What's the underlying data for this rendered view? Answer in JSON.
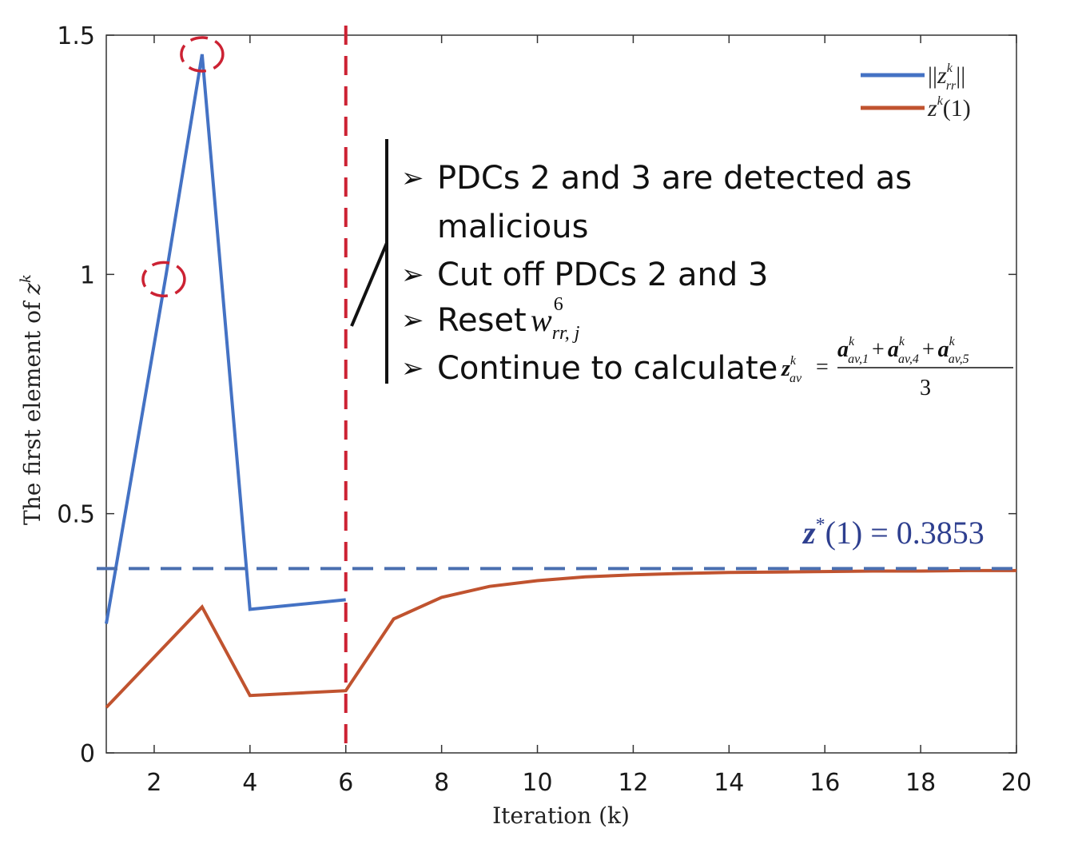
{
  "chart_data": {
    "type": "line",
    "xlabel": "Iteration (k)",
    "ylabel": "The first element of z^k",
    "ylabel_parts": {
      "text": "The first element of ",
      "var": "z",
      "sup": "k"
    },
    "xlim": [
      1,
      20
    ],
    "ylim": [
      0,
      1.5
    ],
    "x_ticks": [
      2,
      4,
      6,
      8,
      10,
      12,
      14,
      16,
      18,
      20
    ],
    "x_tick_labels": [
      "2",
      "4",
      "6",
      "8",
      "10",
      "12",
      "14",
      "16",
      "18",
      "20"
    ],
    "y_ticks": [
      0,
      0.5,
      1,
      1.5
    ],
    "y_tick_labels": [
      "0",
      "0.5",
      "1",
      "1.5"
    ],
    "grid": false,
    "legend_position": "top-right",
    "series": [
      {
        "name": "||z_rr^k||",
        "legend_label": {
          "pre": "||",
          "var": "z",
          "sub": "rr",
          "sup": "k",
          "post": "||"
        },
        "color": "#4472c4",
        "x": [
          1,
          2.25,
          3,
          4,
          6
        ],
        "values": [
          0.27,
          1.0,
          1.46,
          0.3,
          0.32
        ]
      },
      {
        "name": "z^k(1)",
        "legend_label": {
          "var": "z",
          "sup": "k",
          "post": "(1)"
        },
        "color": "#c0532f",
        "x": [
          1,
          3,
          4,
          6,
          7,
          8,
          9,
          10,
          11,
          12,
          13,
          14,
          15,
          16,
          17,
          18,
          19,
          20
        ],
        "values": [
          0.095,
          0.305,
          0.12,
          0.13,
          0.28,
          0.325,
          0.348,
          0.36,
          0.368,
          0.372,
          0.375,
          0.377,
          0.378,
          0.379,
          0.38,
          0.38,
          0.381,
          0.381
        ]
      }
    ],
    "reference_lines": [
      {
        "orientation": "horizontal",
        "y": 0.3853,
        "color": "#4a6fb0",
        "style": "dashed"
      },
      {
        "orientation": "vertical",
        "x": 6,
        "color": "#cc2233",
        "style": "dashed"
      }
    ],
    "highlight_circles": [
      {
        "x": 3,
        "y": 1.46,
        "color": "#cc2233"
      },
      {
        "x": 2.2,
        "y": 0.99,
        "color": "#cc2233"
      }
    ],
    "equilibrium_label": {
      "var": "z",
      "sup": "*",
      "rest": "(1) = 0.3853",
      "color": "#2e3f8f"
    },
    "annotations": [
      {
        "bullet": "➢",
        "lines": [
          "PDCs 2 and 3 are detected as",
          "malicious"
        ]
      },
      {
        "bullet": "➢",
        "lines": [
          "Cut off PDCs 2 and 3"
        ]
      },
      {
        "bullet": "➢",
        "lines": [
          "Reset"
        ],
        "math": {
          "var": "w",
          "sup": "6",
          "sub": "rr, j"
        }
      },
      {
        "bullet": "➢",
        "lines": [
          "Continue to calculate"
        ],
        "math": {
          "lhs_var": "z",
          "lhs_sup": "k",
          "lhs_sub": "av",
          "eq": "=",
          "numerator": [
            {
              "var": "a",
              "sup": "k",
              "sub": "av,1"
            },
            {
              "var": "a",
              "sup": "k",
              "sub": "av,4"
            },
            {
              "var": "a",
              "sup": "k",
              "sub": "av,5"
            }
          ],
          "plus": "+",
          "denominator": "3"
        }
      }
    ]
  }
}
